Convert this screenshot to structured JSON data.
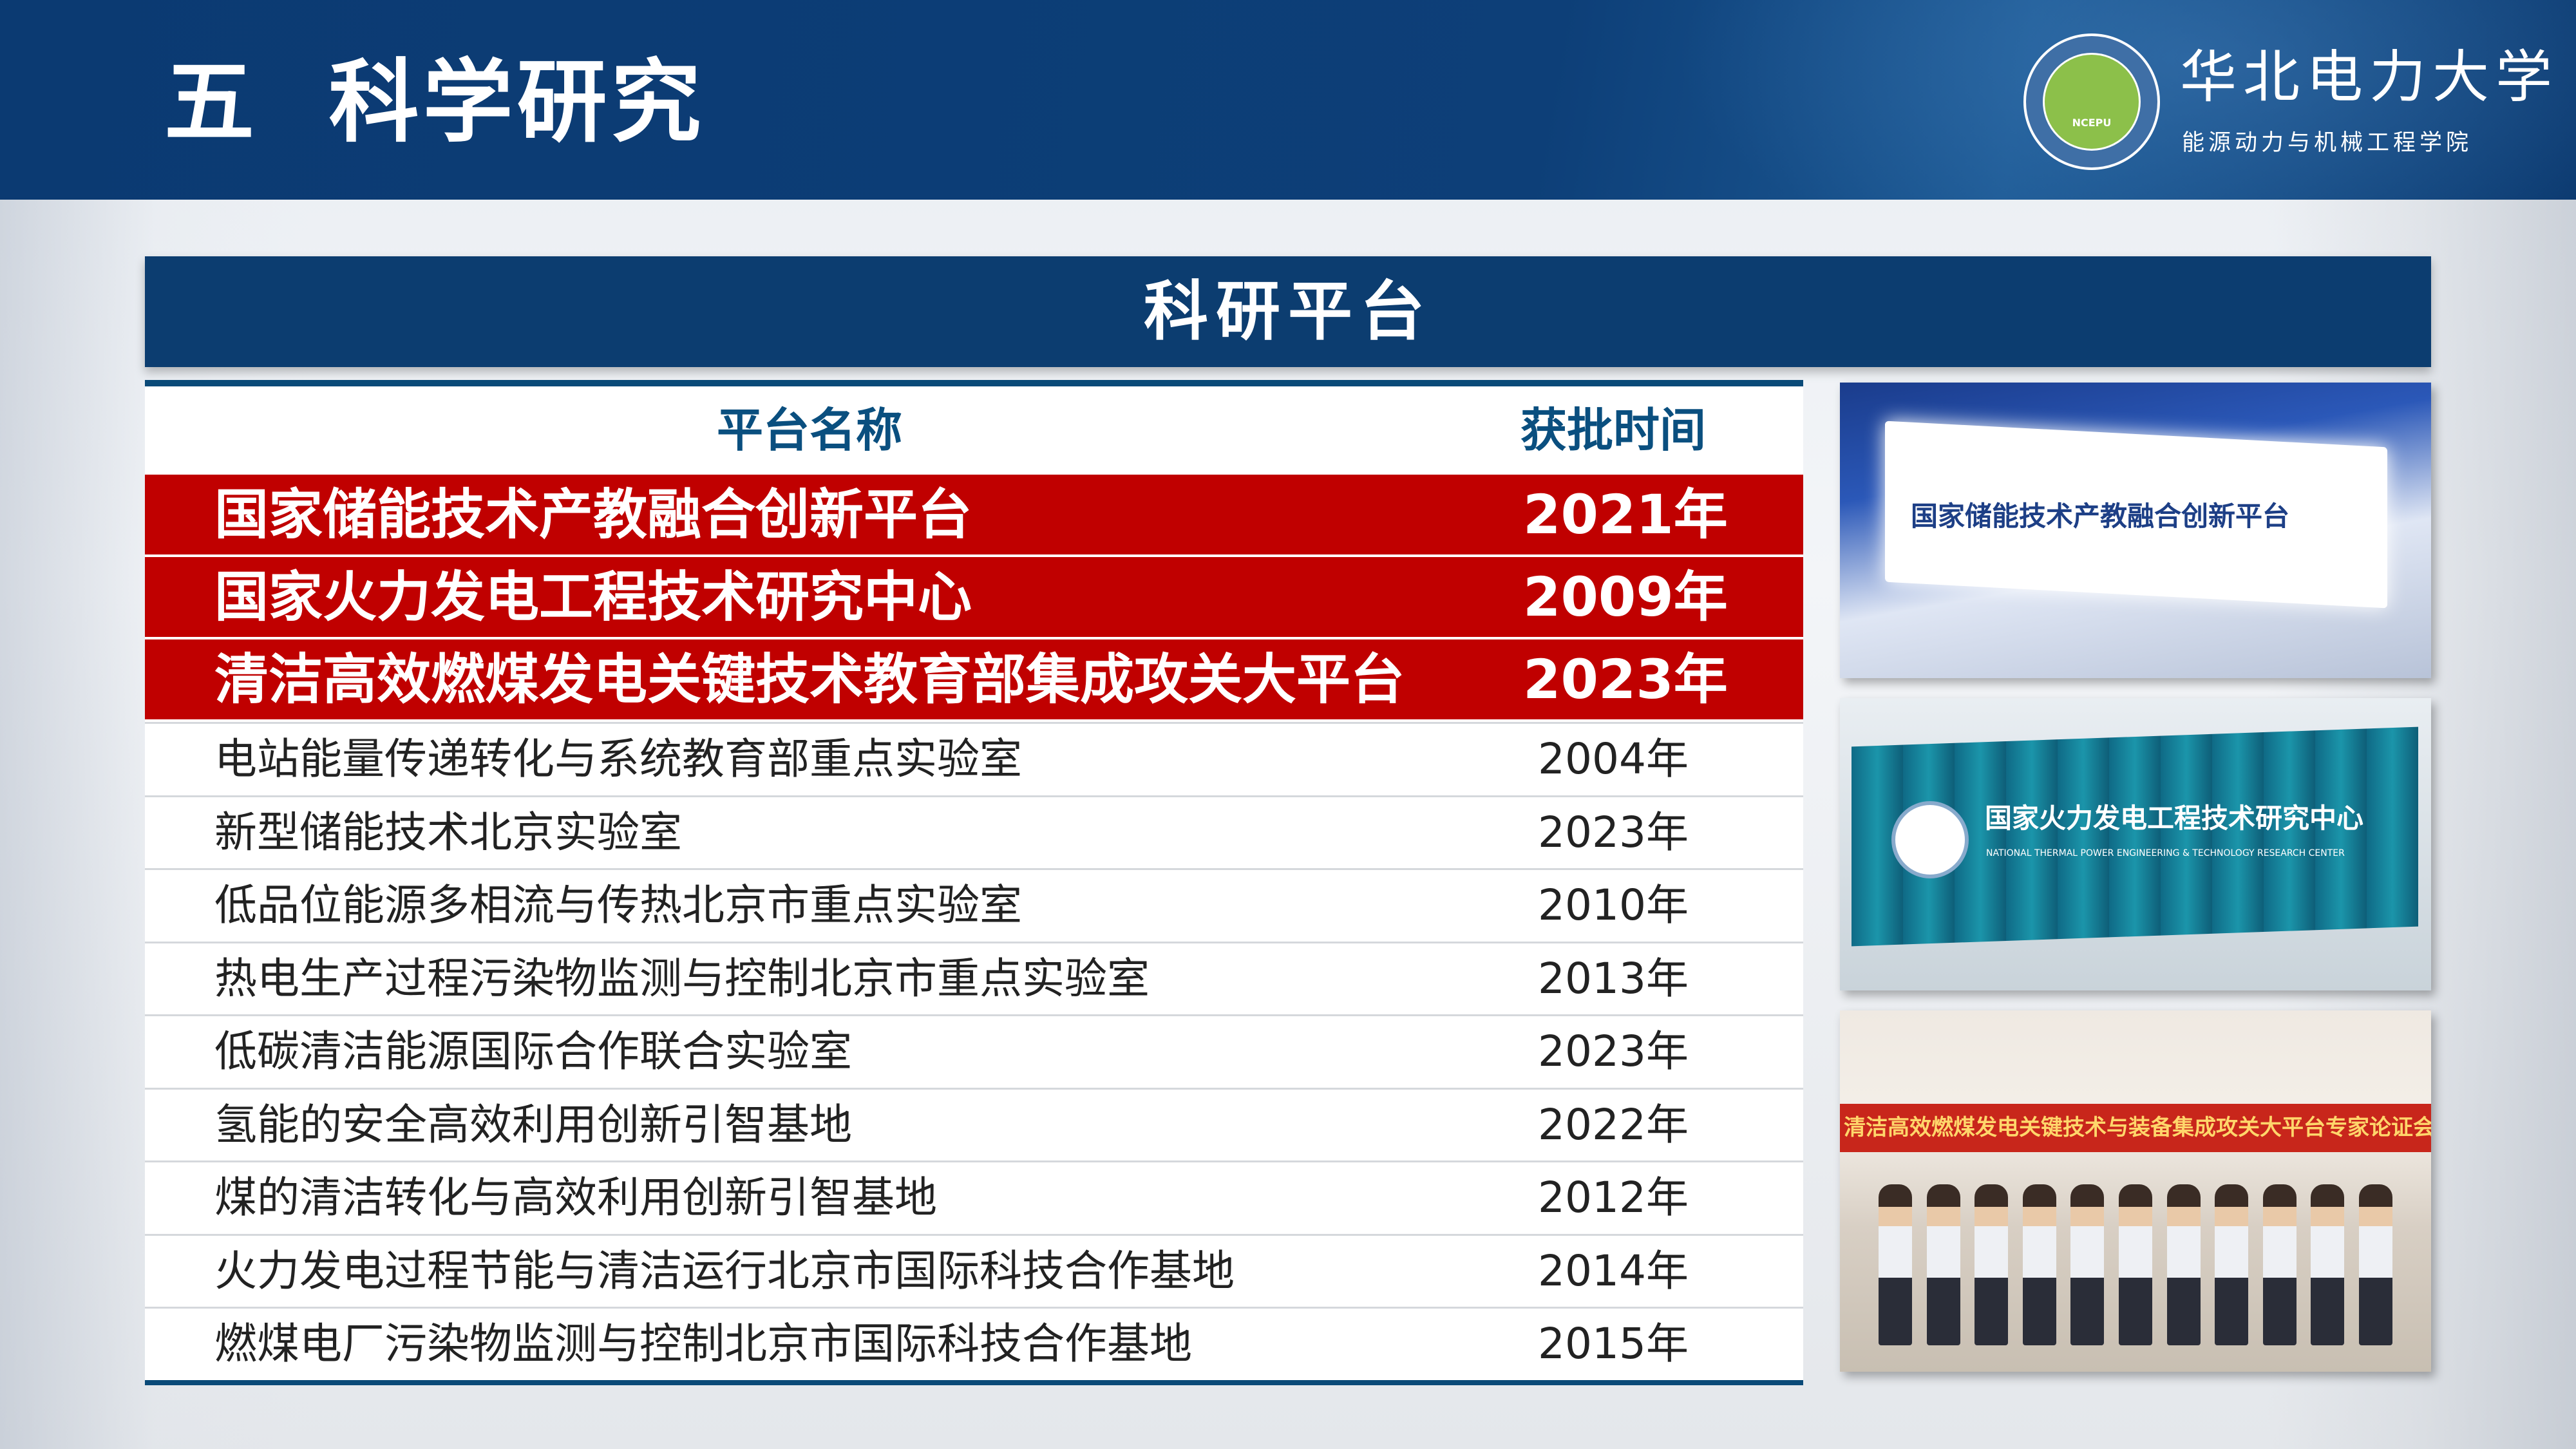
{
  "header": {
    "title": "五  科学研究",
    "university": "华北电力大学",
    "school": "能源动力与机械工程学院",
    "logo_text": "NCEPU"
  },
  "section": {
    "title": "科研平台"
  },
  "table": {
    "headers": [
      "平台名称",
      "获批时间"
    ],
    "highlighted_rows": [
      {
        "name": "国家储能技术产教融合创新平台",
        "year": "2021年"
      },
      {
        "name": "国家火力发电工程技术研究中心",
        "year": "2009年"
      },
      {
        "name": "清洁高效燃煤发电关键技术教育部集成攻关大平台",
        "year": "2023年"
      }
    ],
    "rows": [
      {
        "name": "电站能量传递转化与系统教育部重点实验室",
        "year": "2004年"
      },
      {
        "name": "新型储能技术北京实验室",
        "year": "2023年"
      },
      {
        "name": "低品位能源多相流与传热北京市重点实验室",
        "year": "2010年"
      },
      {
        "name": "热电生产过程污染物监测与控制北京市重点实验室",
        "year": "2013年"
      },
      {
        "name": "低碳清洁能源国际合作联合实验室",
        "year": "2023年"
      },
      {
        "name": "氢能的安全高效利用创新引智基地",
        "year": "2022年"
      },
      {
        "name": "煤的清洁转化与高效利用创新引智基地",
        "year": "2012年"
      },
      {
        "name": "火力发电过程节能与清洁运行北京市国际科技合作基地",
        "year": "2014年"
      },
      {
        "name": "燃煤电厂污染物监测与控制北京市国际科技合作基地",
        "year": "2015年"
      }
    ],
    "colors": {
      "highlight": "#c00000",
      "header_text": "#0a4f7f",
      "border": "#0a4a78"
    }
  },
  "photos": [
    {
      "sign_text": "国家储能技术产教融合创新平台"
    },
    {
      "sign_text": "国家火力发电工程技术研究中心",
      "sign_subtext": "NATIONAL THERMAL POWER ENGINEERING & TECHNOLOGY RESEARCH CENTER"
    },
    {
      "banner_text": "清洁高效燃煤发电关键技术与装备集成攻关大平台专家论证会"
    }
  ]
}
